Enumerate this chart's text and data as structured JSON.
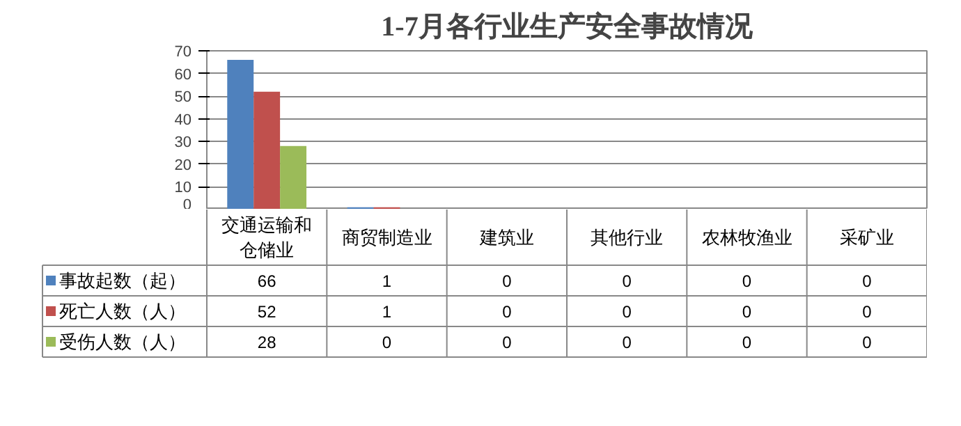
{
  "chart_data": {
    "type": "bar",
    "title": "1-7月各行业生产安全事故情况",
    "categories": [
      "交通运输和仓储业",
      "商贸制造业",
      "建筑业",
      "其他行业",
      "农林牧渔业",
      "采矿业"
    ],
    "series": [
      {
        "name": "事故起数（起）",
        "color": "#4f81bd",
        "values": [
          66,
          1,
          0,
          0,
          0,
          0
        ]
      },
      {
        "name": "死亡人数（人）",
        "color": "#c0504d",
        "values": [
          52,
          1,
          0,
          0,
          0,
          0
        ]
      },
      {
        "name": "受伤人数（人）",
        "color": "#9bbb59",
        "values": [
          28,
          0,
          0,
          0,
          0,
          0
        ]
      }
    ],
    "ylim": [
      0,
      70
    ],
    "yticks": [
      0,
      10,
      20,
      30,
      40,
      50,
      60,
      70
    ],
    "grid": "y",
    "legend": "bottom",
    "data_labels": true
  }
}
